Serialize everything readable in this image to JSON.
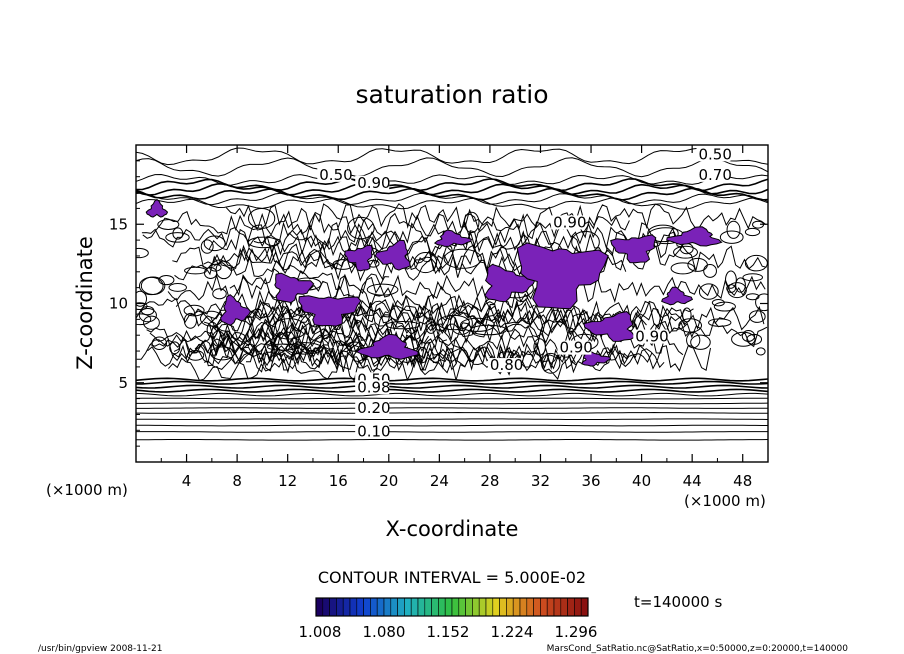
{
  "chart_data": {
    "type": "contour",
    "title": "saturation ratio",
    "xlabel": "X-coordinate",
    "ylabel": "Z-coordinate",
    "x_unit": "(×1000 m)",
    "y_unit": "(×1000 m)",
    "xlim": [
      0,
      50
    ],
    "ylim": [
      0,
      20
    ],
    "x_ticks": [
      4,
      8,
      12,
      16,
      20,
      24,
      28,
      32,
      36,
      40,
      44,
      48
    ],
    "y_ticks": [
      5,
      10,
      15
    ],
    "contour_interval_label": "CONTOUR INTERVAL = 5.000E-02",
    "contour_labels": [
      {
        "text": "0.10",
        "x": 17.5,
        "y": 1.6
      },
      {
        "text": "0.20",
        "x": 17.5,
        "y": 3.1
      },
      {
        "text": "0.50",
        "x": 17.5,
        "y": 4.9
      },
      {
        "text": "0.98",
        "x": 17.5,
        "y": 4.4
      },
      {
        "text": "0.50",
        "x": 14.5,
        "y": 17.8
      },
      {
        "text": "0.90",
        "x": 17.5,
        "y": 17.3
      },
      {
        "text": "0.50",
        "x": 44.5,
        "y": 19.1
      },
      {
        "text": "0.70",
        "x": 44.5,
        "y": 17.8
      },
      {
        "text": "0.90",
        "x": 33.0,
        "y": 14.8
      },
      {
        "text": "0.90",
        "x": 33.5,
        "y": 6.9
      },
      {
        "text": "0.90",
        "x": 39.5,
        "y": 7.6
      },
      {
        "text": "0.80",
        "x": 28.0,
        "y": 5.8
      }
    ],
    "shaded_range_min": 1.0,
    "colorbar_ticks": [
      "1.008",
      "1.080",
      "1.152",
      "1.224",
      "1.296"
    ],
    "colorbar_colors": [
      "#1a0060",
      "#1040d0",
      "#20b0c0",
      "#30c040",
      "#e0d020",
      "#d05020",
      "#8a1010"
    ],
    "time_label": "t=140000 s",
    "footer_left": "/usr/bin/gpview   2008-11-21",
    "footer_right": "MarsCond_SatRatio.nc@SatRatio,x=0:50000,z=0:20000,t=140000",
    "supersaturated_regions": [
      {
        "x": [
          0.8,
          2.5
        ],
        "y": [
          15.3,
          16.5
        ]
      },
      {
        "x": [
          6.5,
          9.0
        ],
        "y": [
          8.5,
          10.5
        ]
      },
      {
        "x": [
          10.5,
          14.0
        ],
        "y": [
          10.0,
          12.0
        ]
      },
      {
        "x": [
          12.5,
          18.0
        ],
        "y": [
          8.5,
          10.8
        ]
      },
      {
        "x": [
          16.5,
          19.0
        ],
        "y": [
          12.0,
          13.8
        ]
      },
      {
        "x": [
          19.0,
          22.0
        ],
        "y": [
          12.0,
          14.0
        ]
      },
      {
        "x": [
          17.5,
          22.5
        ],
        "y": [
          6.3,
          8.0
        ]
      },
      {
        "x": [
          23.5,
          26.5
        ],
        "y": [
          13.5,
          14.6
        ]
      },
      {
        "x": [
          27.0,
          31.5
        ],
        "y": [
          10.0,
          12.5
        ]
      },
      {
        "x": [
          29.5,
          37.5
        ],
        "y": [
          9.5,
          14.3
        ]
      },
      {
        "x": [
          37.5,
          41.5
        ],
        "y": [
          12.5,
          14.5
        ]
      },
      {
        "x": [
          35.5,
          40.0
        ],
        "y": [
          7.5,
          9.5
        ]
      },
      {
        "x": [
          42.0,
          46.5
        ],
        "y": [
          13.5,
          14.8
        ]
      },
      {
        "x": [
          41.5,
          44.0
        ],
        "y": [
          9.8,
          11.0
        ]
      },
      {
        "x": [
          35.0,
          37.5
        ],
        "y": [
          6.0,
          7.0
        ]
      }
    ]
  }
}
